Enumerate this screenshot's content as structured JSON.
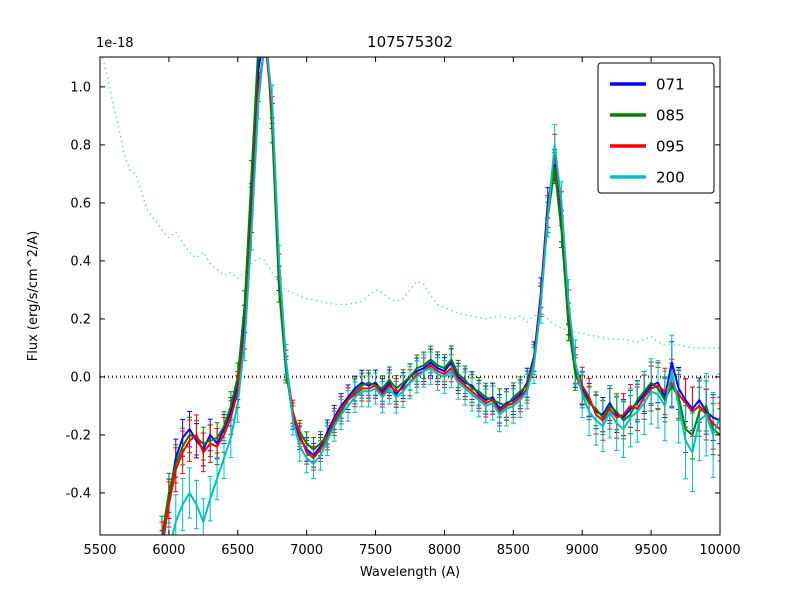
{
  "chart_data": {
    "type": "line",
    "title": "107575302",
    "xlabel": "Wavelength (A)",
    "ylabel": "Flux (erg/s/cm^2/A)",
    "offset_text": "1e-18",
    "background": "#ffffff",
    "axes_color": "#000000",
    "grid": false,
    "xlim": [
      5500,
      10000
    ],
    "ylim": [
      -0.545,
      1.103
    ],
    "xticks": {
      "values": [
        5500,
        6000,
        6500,
        7000,
        7500,
        8000,
        8500,
        9000,
        9500,
        10000
      ],
      "labels": [
        "5500",
        "6000",
        "6500",
        "7000",
        "7500",
        "8000",
        "8500",
        "9000",
        "9500",
        "10000"
      ]
    },
    "yticks": {
      "values": [
        1.0,
        0.8,
        0.6,
        0.4,
        0.2,
        0.0,
        -0.2,
        -0.4
      ],
      "labels": [
        "1.0",
        "0.8",
        "0.6",
        "0.4",
        "0.2",
        "0.0",
        "-0.2",
        "-0.4"
      ]
    },
    "legend": {
      "position": "upper right",
      "entries": [
        "071",
        "085",
        "095",
        "200"
      ]
    },
    "x": [
      5950,
      6000,
      6050,
      6100,
      6150,
      6200,
      6250,
      6300,
      6350,
      6400,
      6450,
      6500,
      6550,
      6600,
      6650,
      6700,
      6750,
      6800,
      6850,
      6900,
      6950,
      7000,
      7050,
      7100,
      7150,
      7200,
      7250,
      7300,
      7350,
      7400,
      7450,
      7500,
      7550,
      7600,
      7650,
      7700,
      7750,
      7800,
      7850,
      7900,
      7950,
      8000,
      8050,
      8100,
      8150,
      8200,
      8250,
      8300,
      8350,
      8400,
      8450,
      8500,
      8550,
      8600,
      8650,
      8700,
      8750,
      8800,
      8850,
      8900,
      8950,
      9000,
      9050,
      9100,
      9150,
      9200,
      9250,
      9300,
      9350,
      9400,
      9450,
      9500,
      9550,
      9600,
      9650,
      9700,
      9750,
      9800,
      9850,
      9900,
      9950,
      10000
    ],
    "series": [
      {
        "name": "071",
        "color": "#0000ff",
        "values": [
          -0.6,
          -0.42,
          -0.28,
          -0.21,
          -0.18,
          -0.22,
          -0.25,
          -0.2,
          -0.23,
          -0.18,
          -0.12,
          -0.03,
          0.2,
          0.62,
          1.06,
          1.2,
          0.9,
          0.34,
          0.03,
          -0.14,
          -0.21,
          -0.25,
          -0.27,
          -0.24,
          -0.19,
          -0.14,
          -0.1,
          -0.07,
          -0.04,
          -0.02,
          -0.03,
          -0.02,
          -0.05,
          -0.02,
          -0.06,
          -0.03,
          0.0,
          0.02,
          0.03,
          0.05,
          0.03,
          0.02,
          0.05,
          0.0,
          -0.02,
          -0.03,
          -0.06,
          -0.08,
          -0.07,
          -0.11,
          -0.09,
          -0.08,
          -0.06,
          -0.02,
          0.07,
          0.29,
          0.6,
          0.73,
          0.52,
          0.2,
          0.02,
          -0.04,
          -0.08,
          -0.12,
          -0.13,
          -0.09,
          -0.13,
          -0.14,
          -0.11,
          -0.09,
          -0.06,
          -0.03,
          -0.02,
          -0.07,
          0.05,
          -0.04,
          -0.08,
          -0.11,
          -0.08,
          -0.12,
          -0.14,
          -0.15
        ],
        "err_anchors": {
          "x": [
            5950,
            6400,
            6900,
            8600,
            9200,
            10000
          ],
          "v": [
            0.07,
            0.05,
            0.04,
            0.05,
            0.06,
            0.08
          ]
        }
      },
      {
        "name": "085",
        "color": "#008000",
        "values": [
          -0.55,
          -0.4,
          -0.3,
          -0.24,
          -0.2,
          -0.21,
          -0.23,
          -0.22,
          -0.21,
          -0.17,
          -0.1,
          0.0,
          0.25,
          0.7,
          1.15,
          1.25,
          0.85,
          0.3,
          0.02,
          -0.13,
          -0.19,
          -0.23,
          -0.25,
          -0.23,
          -0.2,
          -0.16,
          -0.12,
          -0.08,
          -0.05,
          -0.03,
          -0.02,
          -0.03,
          -0.04,
          -0.01,
          -0.04,
          -0.02,
          0.0,
          0.03,
          0.04,
          0.06,
          0.04,
          0.03,
          0.06,
          0.01,
          -0.01,
          -0.04,
          -0.05,
          -0.07,
          -0.08,
          -0.09,
          -0.1,
          -0.07,
          -0.05,
          -0.03,
          0.06,
          0.26,
          0.55,
          0.72,
          0.5,
          0.18,
          0.01,
          -0.05,
          -0.09,
          -0.11,
          -0.14,
          -0.1,
          -0.12,
          -0.15,
          -0.13,
          -0.08,
          -0.05,
          -0.02,
          -0.04,
          -0.08,
          -0.03,
          -0.07,
          -0.18,
          -0.2,
          -0.12,
          -0.1,
          -0.18,
          -0.2
        ],
        "err_anchors": {
          "x": [
            5950,
            6400,
            6900,
            8600,
            9200,
            10000
          ],
          "v": [
            0.07,
            0.05,
            0.04,
            0.05,
            0.06,
            0.09
          ]
        }
      },
      {
        "name": "095",
        "color": "#ff0000",
        "values": [
          -0.58,
          -0.44,
          -0.32,
          -0.26,
          -0.22,
          -0.2,
          -0.26,
          -0.23,
          -0.24,
          -0.2,
          -0.14,
          -0.05,
          0.15,
          0.55,
          1.0,
          1.15,
          0.92,
          0.38,
          0.05,
          -0.12,
          -0.2,
          -0.26,
          -0.28,
          -0.25,
          -0.21,
          -0.15,
          -0.11,
          -0.08,
          -0.06,
          -0.04,
          -0.04,
          -0.03,
          -0.06,
          -0.03,
          -0.05,
          -0.04,
          -0.02,
          0.01,
          0.02,
          0.04,
          0.02,
          0.01,
          0.03,
          -0.01,
          -0.03,
          -0.05,
          -0.07,
          -0.09,
          -0.08,
          -0.12,
          -0.1,
          -0.09,
          -0.07,
          -0.04,
          0.05,
          0.27,
          0.57,
          0.78,
          0.58,
          0.24,
          0.04,
          -0.03,
          -0.07,
          -0.13,
          -0.15,
          -0.11,
          -0.14,
          -0.13,
          -0.1,
          -0.11,
          -0.07,
          -0.04,
          -0.03,
          -0.05,
          -0.02,
          -0.06,
          -0.09,
          -0.12,
          -0.1,
          -0.13,
          -0.16,
          -0.18
        ],
        "err_anchors": {
          "x": [
            5950,
            6400,
            6900,
            8600,
            9200,
            10000
          ],
          "v": [
            0.08,
            0.06,
            0.04,
            0.05,
            0.07,
            0.09
          ]
        }
      },
      {
        "name": "200",
        "color": "#00bfbf",
        "values": [
          -0.75,
          -0.6,
          -0.5,
          -0.44,
          -0.4,
          -0.44,
          -0.5,
          -0.42,
          -0.35,
          -0.28,
          -0.21,
          -0.09,
          0.12,
          0.5,
          0.95,
          1.18,
          0.95,
          0.4,
          0.06,
          -0.15,
          -0.24,
          -0.28,
          -0.3,
          -0.27,
          -0.22,
          -0.17,
          -0.13,
          -0.1,
          -0.07,
          -0.05,
          -0.05,
          -0.04,
          -0.07,
          -0.04,
          -0.07,
          -0.05,
          -0.02,
          0.0,
          0.02,
          0.03,
          0.01,
          0.0,
          0.02,
          -0.02,
          -0.04,
          -0.06,
          -0.08,
          -0.1,
          -0.09,
          -0.13,
          -0.11,
          -0.1,
          -0.08,
          -0.05,
          0.04,
          0.25,
          0.55,
          0.8,
          0.6,
          0.26,
          0.05,
          -0.06,
          -0.12,
          -0.15,
          -0.17,
          -0.12,
          -0.16,
          -0.18,
          -0.14,
          -0.12,
          -0.09,
          -0.05,
          -0.06,
          -0.1,
          0.02,
          -0.1,
          -0.22,
          -0.26,
          -0.15,
          -0.13,
          -0.2,
          -0.14
        ],
        "err_anchors": {
          "x": [
            5950,
            6400,
            6900,
            8600,
            9200,
            10000
          ],
          "v": [
            0.1,
            0.07,
            0.05,
            0.06,
            0.09,
            0.15
          ]
        }
      }
    ],
    "noise_curve": {
      "color": "#00bfbf",
      "style": "dotted",
      "x": [
        5520,
        5560,
        5600,
        5640,
        5680,
        5720,
        5760,
        5800,
        5840,
        5880,
        5920,
        5960,
        6000,
        6050,
        6100,
        6150,
        6200,
        6250,
        6300,
        6350,
        6400,
        6450,
        6500,
        6550,
        6600,
        6650,
        6700,
        6750,
        6800,
        6850,
        6900,
        6950,
        7000,
        7100,
        7200,
        7300,
        7400,
        7450,
        7500,
        7550,
        7600,
        7650,
        7700,
        7750,
        7800,
        7850,
        7900,
        7950,
        8000,
        8100,
        8200,
        8300,
        8400,
        8500,
        8550,
        8600,
        8650,
        8700,
        8750,
        8800,
        8850,
        8900,
        9000,
        9100,
        9200,
        9300,
        9400,
        9500,
        9550,
        9600,
        9700,
        9800,
        9900,
        10000
      ],
      "y": [
        1.1,
        1.02,
        0.93,
        0.85,
        0.76,
        0.71,
        0.7,
        0.64,
        0.58,
        0.55,
        0.53,
        0.5,
        0.48,
        0.5,
        0.46,
        0.43,
        0.41,
        0.43,
        0.39,
        0.37,
        0.35,
        0.36,
        0.34,
        0.36,
        0.39,
        0.41,
        0.4,
        0.36,
        0.32,
        0.3,
        0.29,
        0.28,
        0.27,
        0.26,
        0.25,
        0.25,
        0.26,
        0.28,
        0.3,
        0.29,
        0.27,
        0.26,
        0.27,
        0.3,
        0.33,
        0.32,
        0.28,
        0.25,
        0.24,
        0.22,
        0.21,
        0.2,
        0.21,
        0.2,
        0.21,
        0.19,
        0.21,
        0.22,
        0.2,
        0.18,
        0.17,
        0.16,
        0.15,
        0.14,
        0.13,
        0.13,
        0.12,
        0.14,
        0.12,
        0.11,
        0.11,
        0.1,
        0.1,
        0.1
      ]
    },
    "zero_lines": [
      {
        "y": 0.0,
        "color": "#00008b"
      },
      {
        "y": 0.0,
        "color": "#006400"
      },
      {
        "y": 0.0,
        "color": "#cc0000"
      }
    ]
  }
}
